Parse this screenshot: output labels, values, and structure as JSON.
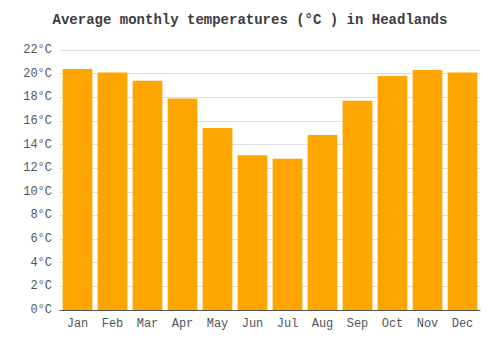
{
  "chart_data": {
    "type": "bar",
    "title": "Average monthly temperatures (°C ) in Headlands",
    "categories": [
      "Jan",
      "Feb",
      "Mar",
      "Apr",
      "May",
      "Jun",
      "Jul",
      "Aug",
      "Sep",
      "Oct",
      "Nov",
      "Dec"
    ],
    "values": [
      20.4,
      20.1,
      19.4,
      17.9,
      15.4,
      13.1,
      12.8,
      14.8,
      17.7,
      19.8,
      20.3,
      20.1
    ],
    "color": "#FFA500",
    "ylim": [
      0,
      22
    ],
    "yticks": [
      {
        "value": 0,
        "label": "0°C"
      },
      {
        "value": 2,
        "label": "2°C"
      },
      {
        "value": 4,
        "label": "4°C"
      },
      {
        "value": 6,
        "label": "6°C"
      },
      {
        "value": 8,
        "label": "8°C"
      },
      {
        "value": 10,
        "label": "10°C"
      },
      {
        "value": 12,
        "label": "12°C"
      },
      {
        "value": 14,
        "label": "14°C"
      },
      {
        "value": 16,
        "label": "16°C"
      },
      {
        "value": 18,
        "label": "18°C"
      },
      {
        "value": 20,
        "label": "20°C"
      },
      {
        "value": 22,
        "label": "22°C"
      }
    ],
    "grid": true
  }
}
